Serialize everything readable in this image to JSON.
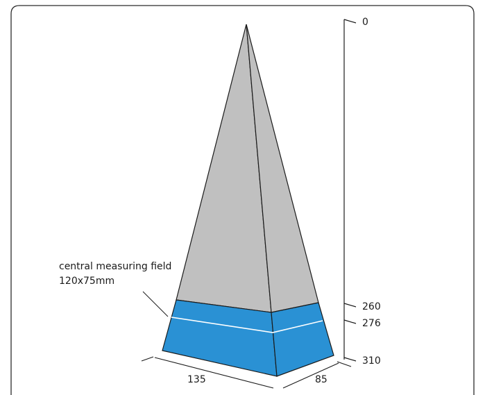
{
  "diagram": {
    "scale_labels": {
      "top": "0",
      "upper_band": "260",
      "lower_band": "276",
      "base": "310"
    },
    "field_annotation": {
      "line1": "central measuring field",
      "line2": "120x75mm"
    },
    "dimensions": {
      "width": "135",
      "depth": "85"
    },
    "colors": {
      "pyramid_fill": "#c0c0c0",
      "base_fill": "#2a91d4",
      "outline": "#1a1a1a",
      "frame": "#2b2b2b",
      "field_line": "#ffffff"
    }
  }
}
